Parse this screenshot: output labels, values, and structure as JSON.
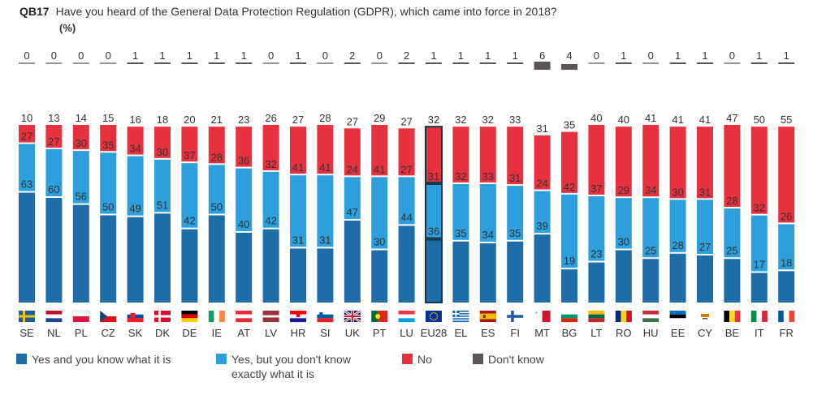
{
  "question": {
    "code": "QB17",
    "text": "Have you heard of the General Data Protection Regulation (GDPR), which came into force in 2018?",
    "unit": "(%)"
  },
  "colors": {
    "yes_know": "#1E6DA8",
    "yes_dont_know": "#2C9FDC",
    "no": "#E8313F",
    "dont_know": "#5B5558",
    "eu_outline": "#17324D"
  },
  "legend": [
    {
      "key": "yes_know",
      "label": "Yes and you know what it is"
    },
    {
      "key": "yes_dont_know",
      "label": "Yes, but you don't know exactly what it is"
    },
    {
      "key": "no",
      "label": "No"
    },
    {
      "key": "dont_know",
      "label": "Don't know"
    }
  ],
  "chart_data": {
    "type": "bar",
    "stacked": true,
    "highlight": "EU28",
    "ylim": [
      0,
      100
    ],
    "categories": [
      "SE",
      "NL",
      "PL",
      "CZ",
      "SK",
      "DK",
      "DE",
      "IE",
      "AT",
      "LV",
      "HR",
      "SI",
      "UK",
      "PT",
      "LU",
      "EU28",
      "EL",
      "ES",
      "FI",
      "MT",
      "BG",
      "LT",
      "RO",
      "HU",
      "EE",
      "CY",
      "BE",
      "IT",
      "FR"
    ],
    "flags": [
      "se",
      "nl",
      "pl",
      "cz",
      "sk",
      "dk",
      "de",
      "ie",
      "at",
      "lv",
      "hr",
      "si",
      "uk",
      "pt",
      "lu",
      "eu",
      "el",
      "es",
      "fi",
      "mt",
      "bg",
      "lt",
      "ro",
      "hu",
      "ee",
      "cy",
      "be",
      "it",
      "fr"
    ],
    "series": [
      {
        "name": "Yes and you know what it is",
        "values": [
          63,
          60,
          56,
          50,
          49,
          51,
          42,
          50,
          40,
          42,
          31,
          31,
          47,
          30,
          44,
          36,
          35,
          34,
          35,
          39,
          19,
          23,
          30,
          25,
          28,
          27,
          25,
          17,
          18
        ]
      },
      {
        "name": "Yes, but you don't know exactly what it is",
        "values": [
          27,
          27,
          30,
          35,
          34,
          30,
          37,
          28,
          36,
          32,
          41,
          41,
          24,
          41,
          27,
          31,
          32,
          33,
          31,
          24,
          42,
          37,
          29,
          34,
          30,
          31,
          28,
          32,
          26
        ]
      },
      {
        "name": "No",
        "values": [
          10,
          13,
          14,
          15,
          16,
          18,
          20,
          21,
          23,
          26,
          27,
          28,
          27,
          29,
          27,
          32,
          32,
          32,
          33,
          31,
          35,
          40,
          40,
          41,
          41,
          41,
          47,
          50,
          55
        ]
      },
      {
        "name": "Don't know",
        "values": [
          0,
          0,
          0,
          0,
          1,
          1,
          1,
          1,
          1,
          0,
          1,
          0,
          2,
          0,
          2,
          1,
          1,
          1,
          1,
          6,
          4,
          0,
          1,
          0,
          1,
          1,
          0,
          1,
          1
        ]
      }
    ]
  }
}
